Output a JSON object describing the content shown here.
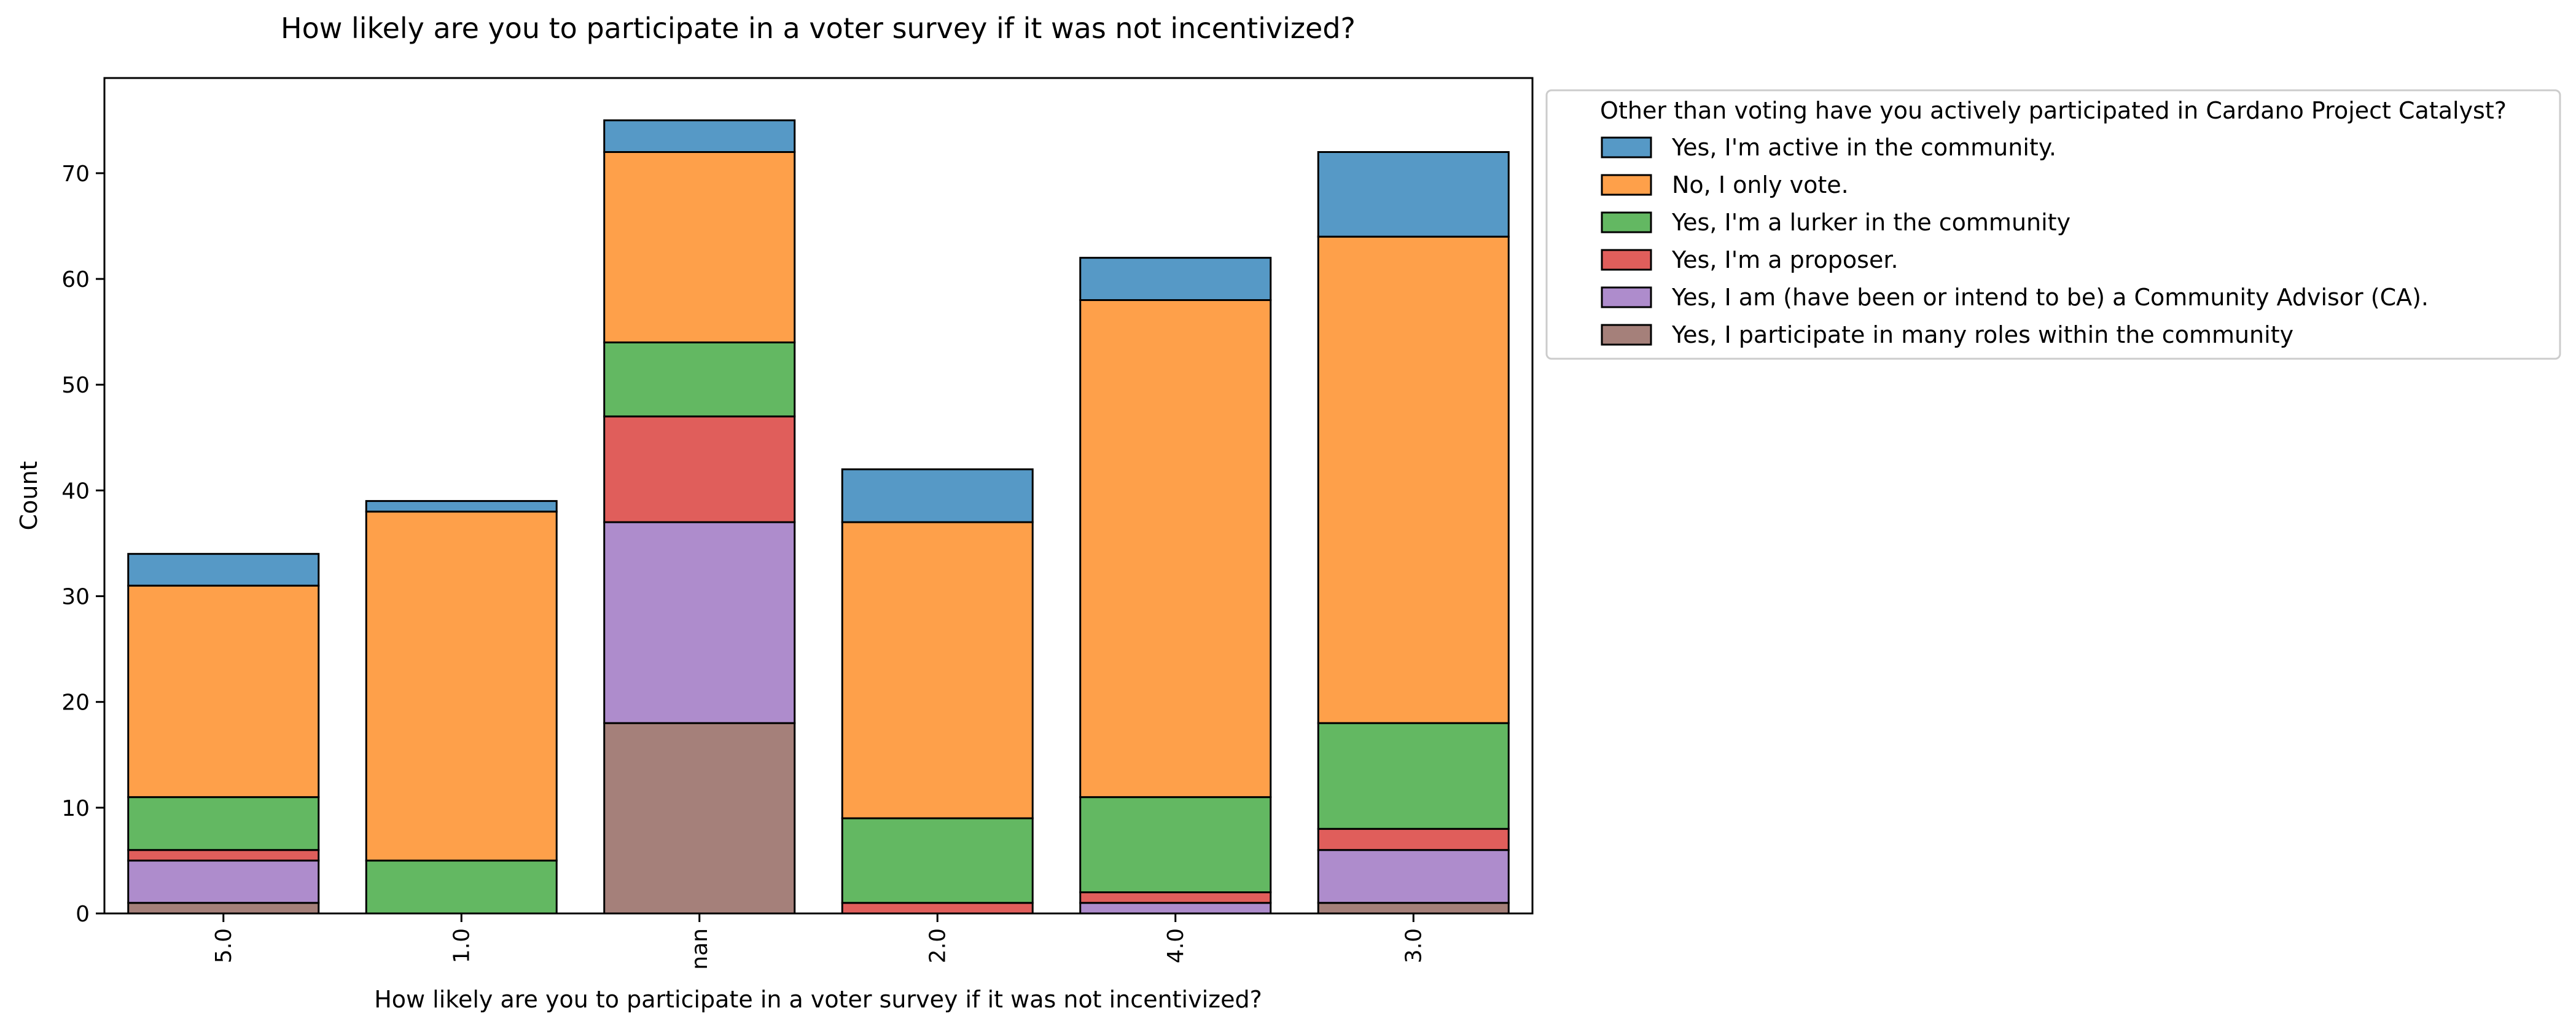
{
  "chart_data": {
    "type": "bar",
    "stacked": true,
    "title": "How likely are you to participate in a voter survey if it was not incentivized?",
    "xlabel": "How likely are you to participate in a voter survey if it was not incentivized?",
    "ylabel": "Count",
    "categories": [
      "5.0",
      "1.0",
      "nan",
      "2.0",
      "4.0",
      "3.0"
    ],
    "ylim": [
      0,
      79
    ],
    "yticks": [
      0,
      10,
      20,
      30,
      40,
      50,
      60,
      70
    ],
    "grid": false,
    "legend": {
      "title": "Other than voting have you actively participated in Cardano Project Catalyst?",
      "placement": "outside-top-right"
    },
    "series": [
      {
        "name": "Yes, I participate in many roles within the community",
        "color": "#a5807a",
        "values": [
          1,
          0,
          18,
          0,
          0,
          1
        ]
      },
      {
        "name": "Yes, I am (have been or intend to be) a Community Advisor (CA).",
        "color": "#ae8ccc",
        "values": [
          4,
          0,
          19,
          0,
          1,
          5
        ]
      },
      {
        "name": "Yes, I'm a proposer.",
        "color": "#e05e5b",
        "values": [
          1,
          0,
          10,
          1,
          1,
          2
        ]
      },
      {
        "name": "Yes, I'm a lurker in the community",
        "color": "#63b862",
        "values": [
          5,
          5,
          7,
          8,
          9,
          10
        ]
      },
      {
        "name": "No, I only vote.",
        "color": "#fea04a",
        "values": [
          20,
          33,
          18,
          28,
          47,
          46
        ]
      },
      {
        "name": "Yes, I'm active in the community.",
        "color": "#5699c6",
        "values": [
          3,
          1,
          3,
          5,
          4,
          8
        ]
      }
    ],
    "legend_order": [
      "Yes, I'm active in the community.",
      "No, I only vote.",
      "Yes, I'm a lurker in the community",
      "Yes, I'm a proposer.",
      "Yes, I am (have been or intend to be) a Community Advisor (CA).",
      "Yes, I participate in many roles within the community"
    ]
  }
}
